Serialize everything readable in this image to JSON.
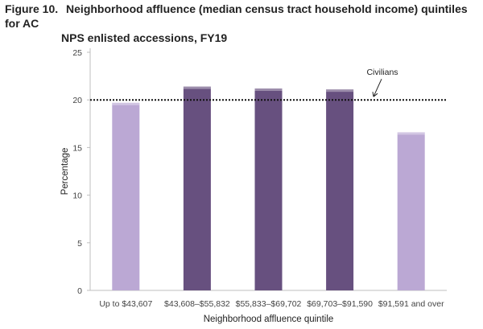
{
  "figure": {
    "label": "Figure 10.",
    "title_line1": "Neighborhood affluence (median census tract household income) quintiles for AC",
    "title_line2": "NPS enlisted accessions, FY19"
  },
  "chart_data": {
    "type": "bar",
    "categories": [
      "Up to $43,607",
      "$43,608–$55,832",
      "$55,833–$69,702",
      "$69,703–$91,590",
      "$91,591 and over"
    ],
    "values": [
      19.7,
      21.4,
      21.2,
      21.1,
      16.6
    ],
    "bar_colors": [
      "#bba8d4",
      "#67507f",
      "#67507f",
      "#67507f",
      "#bba8d4"
    ],
    "xlabel": "Neighborhood affluence quintile",
    "ylabel": "Percentage",
    "ylim": [
      0,
      25
    ],
    "yticks": [
      0,
      5,
      10,
      15,
      20,
      25
    ],
    "reference_line": {
      "label": "Civilians",
      "value": 20
    },
    "grid": false
  }
}
